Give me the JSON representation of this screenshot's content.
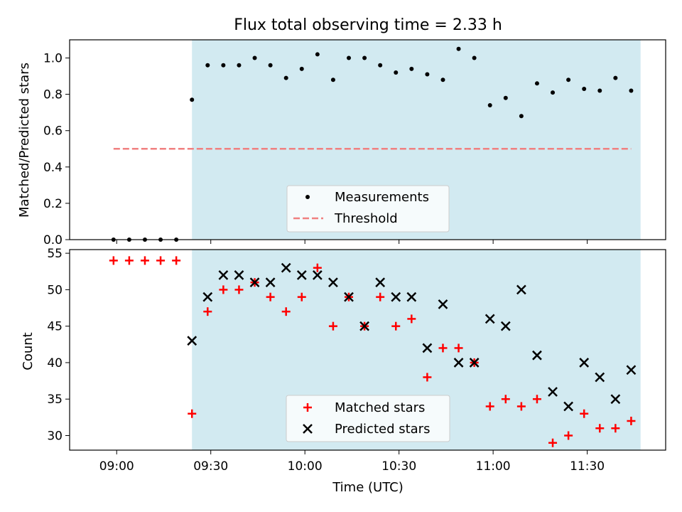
{
  "chart_data": [
    {
      "type": "scatter",
      "title": "Flux total observing time = 2.33 h",
      "xlabel": "",
      "ylabel": "Matched/Predicted stars",
      "ylim": [
        0,
        1.1
      ],
      "yticks": [
        "0.0",
        "0.2",
        "0.4",
        "0.6",
        "0.8",
        "1.0"
      ],
      "shaded_span": [
        "09:24",
        "11:47"
      ],
      "shade_color": "#add8e6",
      "legend_placement": "lower center",
      "x": [
        "08:59",
        "09:04",
        "09:09",
        "09:14",
        "09:19",
        "09:24",
        "09:29",
        "09:34",
        "09:39",
        "09:44",
        "09:49",
        "09:54",
        "09:59",
        "10:04",
        "10:09",
        "10:14",
        "10:19",
        "10:24",
        "10:29",
        "10:34",
        "10:39",
        "10:44",
        "10:49",
        "10:54",
        "10:59",
        "11:04",
        "11:09",
        "11:14",
        "11:19",
        "11:24",
        "11:29",
        "11:34",
        "11:39",
        "11:44"
      ],
      "series": [
        {
          "name": "Measurements",
          "marker": "dot",
          "color": "#000000",
          "values": [
            0,
            0,
            0,
            0,
            0,
            0.77,
            0.96,
            0.96,
            0.96,
            1.0,
            0.96,
            0.89,
            0.94,
            1.02,
            0.88,
            1.0,
            1.0,
            0.96,
            0.92,
            0.94,
            0.91,
            0.88,
            1.05,
            1.0,
            0.74,
            0.78,
            0.68,
            0.86,
            0.81,
            0.88,
            0.83,
            0.82,
            0.89,
            0.82
          ]
        }
      ],
      "threshold": {
        "name": "Threshold",
        "value": 0.5,
        "color": "#f08080",
        "x_range": [
          "08:59",
          "11:44"
        ]
      }
    },
    {
      "type": "scatter",
      "title": "",
      "xlabel": "Time (UTC)",
      "ylabel": "Count",
      "ylim": [
        28,
        55.5
      ],
      "yticks": [
        "30",
        "35",
        "40",
        "45",
        "50",
        "55"
      ],
      "xticks": [
        "09:00",
        "09:30",
        "10:00",
        "10:30",
        "11:00",
        "11:30"
      ],
      "shaded_span": [
        "09:24",
        "11:47"
      ],
      "shade_color": "#add8e6",
      "legend_placement": "lower center",
      "x": [
        "08:59",
        "09:04",
        "09:09",
        "09:14",
        "09:19",
        "09:24",
        "09:29",
        "09:34",
        "09:39",
        "09:44",
        "09:49",
        "09:54",
        "09:59",
        "10:04",
        "10:09",
        "10:14",
        "10:19",
        "10:24",
        "10:29",
        "10:34",
        "10:39",
        "10:44",
        "10:49",
        "10:54",
        "10:59",
        "11:04",
        "11:09",
        "11:14",
        "11:19",
        "11:24",
        "11:29",
        "11:34",
        "11:39",
        "11:44"
      ],
      "series": [
        {
          "name": "Matched stars",
          "marker": "plus",
          "color": "#ff0000",
          "values": [
            54,
            54,
            54,
            54,
            54,
            33,
            47,
            50,
            50,
            51,
            49,
            47,
            49,
            53,
            45,
            49,
            45,
            49,
            45,
            46,
            38,
            42,
            42,
            40,
            34,
            35,
            34,
            35,
            29,
            30,
            33,
            31,
            31,
            32
          ]
        },
        {
          "name": "Predicted stars",
          "marker": "x",
          "color": "#000000",
          "values": [
            null,
            null,
            null,
            null,
            null,
            43,
            49,
            52,
            52,
            51,
            51,
            53,
            52,
            52,
            51,
            49,
            45,
            51,
            49,
            49,
            42,
            48,
            40,
            40,
            46,
            45,
            50,
            41,
            36,
            34,
            40,
            38,
            35,
            39
          ]
        }
      ]
    }
  ]
}
